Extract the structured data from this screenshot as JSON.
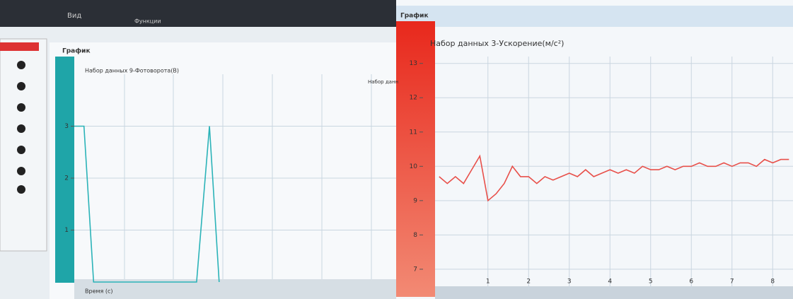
{
  "menu": [
    "Вид",
    "Функции"
  ],
  "chart_data": [
    {
      "type": "line",
      "title": "График",
      "subtitle": "Набор данных 9-Фотоворота(В)",
      "annotation": "Набор данн",
      "x_label": "Время (с)",
      "x": [
        0,
        0.03,
        0.06,
        0.38,
        0.42,
        0.45
      ],
      "values": [
        3,
        3,
        0,
        0,
        3,
        0
      ],
      "color": "#2bb3b8",
      "xlim": [
        0,
        1
      ],
      "ylim": [
        0,
        4
      ],
      "yticks": [
        1,
        2,
        3
      ],
      "grid": true
    },
    {
      "type": "line",
      "title": "График",
      "subtitle": "Набор данных 3-Ускорение(м/с²)",
      "x": [
        -0.2,
        0,
        0.2,
        0.4,
        0.6,
        0.8,
        1.0,
        1.2,
        1.4,
        1.6,
        1.8,
        2.0,
        2.2,
        2.4,
        2.6,
        2.8,
        3.0,
        3.2,
        3.4,
        3.6,
        3.8,
        4.0,
        4.2,
        4.4,
        4.6,
        4.8,
        5.0,
        5.2,
        5.4,
        5.6,
        5.8,
        6.0,
        6.2,
        6.4,
        6.6,
        6.8,
        7.0,
        7.2,
        7.4,
        7.6,
        7.8,
        8.0,
        8.2,
        8.4
      ],
      "values": [
        9.7,
        9.5,
        9.7,
        9.5,
        9.9,
        10.3,
        9.0,
        9.2,
        9.5,
        10.0,
        9.7,
        9.7,
        9.5,
        9.7,
        9.6,
        9.7,
        9.8,
        9.7,
        9.9,
        9.7,
        9.8,
        9.9,
        9.8,
        9.9,
        9.8,
        10.0,
        9.9,
        9.9,
        10.0,
        9.9,
        10.0,
        10.0,
        10.1,
        10.0,
        10.0,
        10.1,
        10.0,
        10.1,
        10.1,
        10.0,
        10.2,
        10.1,
        10.2,
        10.2
      ],
      "color": "#e8504a",
      "xlim": [
        -0.3,
        8.5
      ],
      "ylim": [
        6.4,
        13.2
      ],
      "xticks": [
        1,
        2,
        3,
        4,
        5,
        6,
        7,
        8
      ],
      "yticks": [
        7,
        8,
        9,
        10,
        11,
        12,
        13
      ],
      "grid": true
    }
  ]
}
